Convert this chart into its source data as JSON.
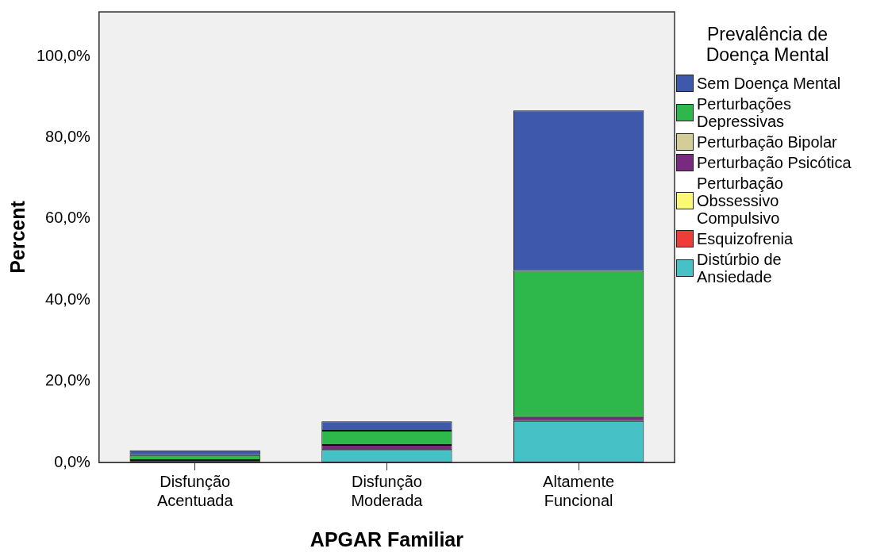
{
  "chart_data": {
    "type": "bar",
    "stacked": true,
    "xlabel": "APGAR Familiar",
    "ylabel": "Percent",
    "legend_title": "Prevalência de Doença Mental",
    "legend": "right",
    "grid": false,
    "categories": [
      "Disfunção Acentuada",
      "Disfunção Moderada",
      "Altamente Funcional"
    ],
    "ylim": [
      0,
      111
    ],
    "yticks": [
      {
        "value": 0,
        "label": "0,0%"
      },
      {
        "value": 20,
        "label": "20,0%"
      },
      {
        "value": 40,
        "label": "40,0%"
      },
      {
        "value": 60,
        "label": "60,0%"
      },
      {
        "value": 80,
        "label": "80,0%"
      },
      {
        "value": 100,
        "label": "100,0%"
      }
    ],
    "series": [
      {
        "name": "Distúrbio de Ansiedade",
        "color": "#46c2c6",
        "values": [
          0,
          3.1,
          10.2
        ]
      },
      {
        "name": "Esquizofrenia",
        "color": "#ef3c39",
        "values": [
          0,
          0,
          0
        ]
      },
      {
        "name": "Perturbação Obssessivo Compulsivo",
        "color": "#fbf873",
        "values": [
          0,
          0,
          0
        ]
      },
      {
        "name": "Perturbação Psicótica",
        "color": "#782a7f",
        "values": [
          0.6,
          1.2,
          1.0
        ]
      },
      {
        "name": "Perturbação Bipolar",
        "color": "#d3ce97",
        "values": [
          0,
          0,
          0
        ]
      },
      {
        "name": "Perturbações Depressivas",
        "color": "#2eb84b",
        "values": [
          1.2,
          3.5,
          36
        ]
      },
      {
        "name": "Sem Doença Mental",
        "color": "#3e58ac",
        "values": [
          1.2,
          2.3,
          39.5
        ]
      }
    ]
  }
}
